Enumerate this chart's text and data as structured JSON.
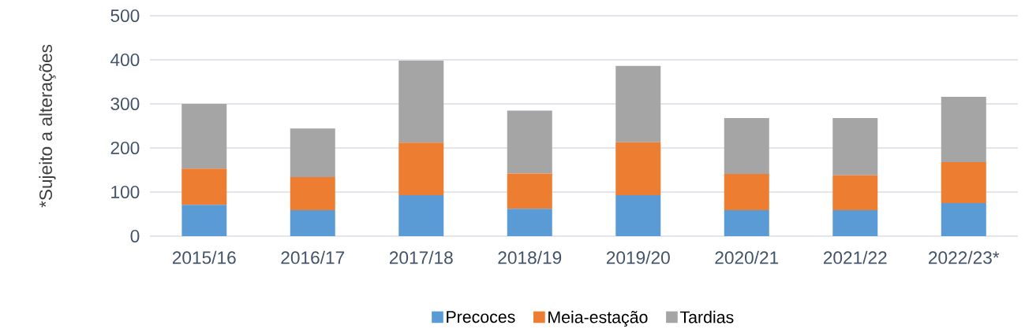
{
  "chart_data": {
    "type": "bar",
    "stacked": true,
    "categories": [
      "2015/16",
      "2016/17",
      "2017/18",
      "2018/19",
      "2019/20",
      "2020/21",
      "2021/22",
      "2022/23*"
    ],
    "series": [
      {
        "name": "Precoces",
        "color": "#5b9bd5",
        "values": [
          71,
          59,
          93,
          62,
          93,
          59,
          59,
          75
        ]
      },
      {
        "name": "Meia-estação",
        "color": "#ed7d31",
        "values": [
          82,
          75,
          119,
          80,
          120,
          82,
          79,
          93
        ]
      },
      {
        "name": "Tardias",
        "color": "#a5a5a5",
        "values": [
          147,
          110,
          186,
          143,
          173,
          127,
          130,
          148
        ]
      }
    ],
    "ylim": [
      0,
      500
    ],
    "yticks": [
      0,
      100,
      200,
      300,
      400,
      500
    ],
    "grid": "y",
    "legend": "bottom",
    "annotations": [
      "*Sujeito a alterações"
    ]
  }
}
